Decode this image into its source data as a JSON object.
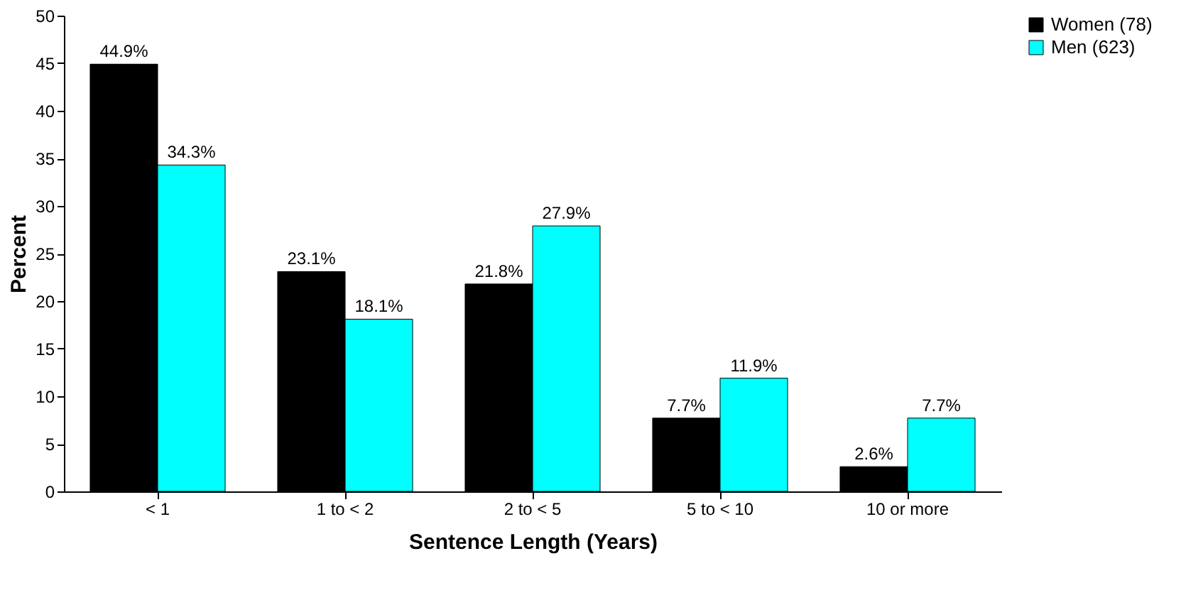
{
  "chart_data": {
    "type": "bar",
    "xlabel": "Sentence Length (Years)",
    "ylabel": "Percent",
    "categories": [
      "< 1",
      "1 to < 2",
      "2 to < 5",
      "5 to < 10",
      "10 or more"
    ],
    "series": [
      {
        "name": "Women (78)",
        "color": "#000000",
        "values": [
          44.9,
          23.1,
          21.8,
          7.7,
          2.6
        ],
        "value_labels": [
          "44.9%",
          "23.1%",
          "21.8%",
          "7.7%",
          "2.6%"
        ]
      },
      {
        "name": "Men (623)",
        "color": "#00ffff",
        "values": [
          34.3,
          18.1,
          27.9,
          11.9,
          7.7
        ],
        "value_labels": [
          "34.3%",
          "18.1%",
          "27.9%",
          "11.9%",
          "7.7%"
        ]
      }
    ],
    "ylim": [
      0,
      50
    ],
    "yticks": [
      0,
      5,
      10,
      15,
      20,
      25,
      30,
      35,
      40,
      45,
      50
    ],
    "grid": false,
    "legend": "right"
  }
}
